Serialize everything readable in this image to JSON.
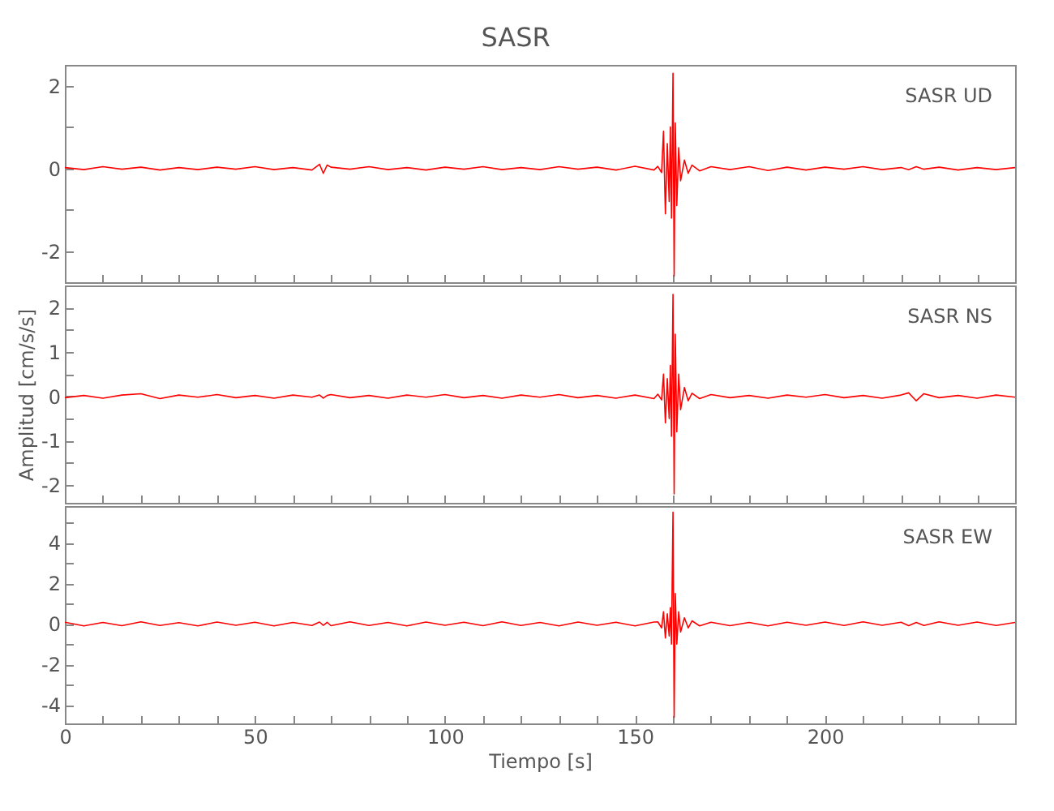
{
  "chart_data": [
    {
      "type": "line",
      "title": "SASR",
      "annotations": [
        "SASR   UD"
      ],
      "tick_labels": "y",
      "xlim": [
        0,
        250
      ],
      "ylim": [
        -2.75,
        2.5
      ],
      "xticks": [
        0,
        {
          "value": 10,
          "label": null
        },
        {
          "value": 20,
          "label": null
        },
        {
          "value": 30,
          "label": null
        },
        {
          "value": 40,
          "label": null
        },
        50,
        {
          "value": 60,
          "label": null
        },
        {
          "value": 70,
          "label": null
        },
        {
          "value": 80,
          "label": null
        },
        {
          "value": 90,
          "label": null
        },
        100,
        {
          "value": 110,
          "label": null
        },
        {
          "value": 120,
          "label": null
        },
        {
          "value": 130,
          "label": null
        },
        {
          "value": 140,
          "label": null
        },
        150,
        {
          "value": 160,
          "label": null
        },
        {
          "value": 170,
          "label": null
        },
        {
          "value": 180,
          "label": null
        },
        {
          "value": 190,
          "label": null
        },
        200,
        {
          "value": 210,
          "label": null
        },
        {
          "value": 220,
          "label": null
        },
        {
          "value": 230,
          "label": null
        },
        {
          "value": 240,
          "label": null
        }
      ],
      "yticks": [
        -2,
        {
          "value": -1,
          "label": null
        },
        0,
        {
          "value": 1,
          "label": null
        },
        2
      ],
      "x": [
        0,
        5,
        10,
        15,
        20,
        25,
        30,
        35,
        40,
        45,
        50,
        55,
        60,
        65,
        67,
        68,
        69,
        70,
        75,
        80,
        85,
        90,
        95,
        100,
        105,
        110,
        115,
        120,
        125,
        130,
        135,
        140,
        145,
        150,
        155,
        156,
        157,
        157.5,
        158,
        158.5,
        159,
        159.3,
        159.6,
        160,
        160.3,
        160.6,
        161,
        161.5,
        162,
        163,
        164,
        165,
        167,
        170,
        175,
        180,
        185,
        190,
        195,
        200,
        205,
        210,
        215,
        220,
        222,
        224,
        226,
        230,
        235,
        240,
        245,
        250
      ],
      "series": [
        {
          "color": "#ff0000",
          "values": [
            0.02,
            -0.03,
            0.04,
            -0.02,
            0.03,
            -0.04,
            0.02,
            -0.03,
            0.03,
            -0.02,
            0.04,
            -0.03,
            0.02,
            -0.04,
            0.1,
            -0.12,
            0.08,
            0.03,
            -0.02,
            0.04,
            -0.03,
            0.02,
            -0.04,
            0.03,
            -0.02,
            0.04,
            -0.03,
            0.02,
            -0.03,
            0.04,
            -0.02,
            0.03,
            -0.04,
            0.05,
            -0.04,
            0.05,
            -0.1,
            0.9,
            -1.1,
            0.6,
            -0.8,
            1.0,
            -1.2,
            2.3,
            -2.6,
            1.1,
            -0.9,
            0.5,
            -0.3,
            0.2,
            -0.12,
            0.08,
            -0.06,
            0.04,
            -0.03,
            0.04,
            -0.05,
            0.03,
            -0.04,
            0.03,
            -0.02,
            0.04,
            -0.03,
            0.02,
            -0.03,
            0.04,
            -0.02,
            0.03,
            -0.04,
            0.02,
            -0.03,
            0.02
          ]
        }
      ]
    },
    {
      "type": "line",
      "ylabel": "Amplitud  [cm/s/s]",
      "annotations": [
        "SASR   NS"
      ],
      "tick_labels": "y",
      "xlim": [
        0,
        250
      ],
      "ylim": [
        -2.4,
        2.5
      ],
      "xticks": [
        0,
        {
          "value": 10,
          "label": null
        },
        {
          "value": 20,
          "label": null
        },
        {
          "value": 30,
          "label": null
        },
        {
          "value": 40,
          "label": null
        },
        50,
        {
          "value": 60,
          "label": null
        },
        {
          "value": 70,
          "label": null
        },
        {
          "value": 80,
          "label": null
        },
        {
          "value": 90,
          "label": null
        },
        100,
        {
          "value": 110,
          "label": null
        },
        {
          "value": 120,
          "label": null
        },
        {
          "value": 130,
          "label": null
        },
        {
          "value": 140,
          "label": null
        },
        150,
        {
          "value": 160,
          "label": null
        },
        {
          "value": 170,
          "label": null
        },
        {
          "value": 180,
          "label": null
        },
        {
          "value": 190,
          "label": null
        },
        200,
        {
          "value": 210,
          "label": null
        },
        {
          "value": 220,
          "label": null
        },
        {
          "value": 230,
          "label": null
        },
        {
          "value": 240,
          "label": null
        }
      ],
      "yticks": [
        -2,
        {
          "value": -1.5,
          "label": null
        },
        -1,
        {
          "value": -0.5,
          "label": null
        },
        0,
        {
          "value": 0.5,
          "label": null
        },
        1,
        {
          "value": 1.5,
          "label": null
        },
        2
      ],
      "x": [
        0,
        5,
        10,
        15,
        20,
        25,
        30,
        35,
        40,
        45,
        50,
        55,
        60,
        65,
        67,
        68,
        69,
        70,
        75,
        80,
        85,
        90,
        95,
        100,
        105,
        110,
        115,
        120,
        125,
        130,
        135,
        140,
        145,
        150,
        155,
        156,
        157,
        157.5,
        158,
        158.5,
        159,
        159.3,
        159.6,
        160,
        160.3,
        160.6,
        161,
        161.5,
        162,
        163,
        164,
        165,
        167,
        170,
        175,
        180,
        185,
        190,
        195,
        200,
        205,
        210,
        215,
        220,
        222,
        224,
        226,
        230,
        235,
        240,
        245,
        250
      ],
      "series": [
        {
          "color": "#ff0000",
          "values": [
            -0.03,
            0.02,
            -0.04,
            0.03,
            0.06,
            -0.05,
            0.03,
            -0.02,
            0.04,
            -0.03,
            0.02,
            -0.04,
            0.03,
            -0.02,
            0.03,
            -0.04,
            0.02,
            0.04,
            -0.03,
            0.02,
            -0.04,
            0.03,
            -0.02,
            0.04,
            -0.03,
            0.02,
            -0.04,
            0.03,
            -0.02,
            0.04,
            -0.03,
            0.02,
            -0.04,
            0.03,
            -0.05,
            0.05,
            -0.08,
            0.5,
            -0.6,
            0.4,
            -0.5,
            0.7,
            -0.9,
            2.3,
            -2.2,
            1.4,
            -0.8,
            0.5,
            -0.3,
            0.2,
            -0.1,
            0.07,
            -0.05,
            0.04,
            -0.03,
            0.02,
            -0.04,
            0.03,
            -0.02,
            0.04,
            -0.03,
            0.02,
            -0.04,
            0.03,
            0.08,
            -0.1,
            0.06,
            -0.03,
            0.02,
            -0.04,
            0.03,
            -0.02
          ]
        }
      ]
    },
    {
      "type": "line",
      "xlabel": "Tiempo  [s]",
      "annotations": [
        "SASR   EW"
      ],
      "xlim": [
        0,
        250
      ],
      "ylim": [
        -4.9,
        5.8
      ],
      "xticks": [
        0,
        {
          "value": 10,
          "label": null
        },
        {
          "value": 20,
          "label": null
        },
        {
          "value": 30,
          "label": null
        },
        {
          "value": 40,
          "label": null
        },
        50,
        {
          "value": 60,
          "label": null
        },
        {
          "value": 70,
          "label": null
        },
        {
          "value": 80,
          "label": null
        },
        {
          "value": 90,
          "label": null
        },
        100,
        {
          "value": 110,
          "label": null
        },
        {
          "value": 120,
          "label": null
        },
        {
          "value": 130,
          "label": null
        },
        {
          "value": 140,
          "label": null
        },
        150,
        {
          "value": 160,
          "label": null
        },
        {
          "value": 170,
          "label": null
        },
        {
          "value": 180,
          "label": null
        },
        {
          "value": 190,
          "label": null
        },
        200,
        {
          "value": 210,
          "label": null
        },
        {
          "value": 220,
          "label": null
        },
        {
          "value": 230,
          "label": null
        },
        {
          "value": 240,
          "label": null
        }
      ],
      "yticks": [
        -4,
        {
          "value": -3,
          "label": null
        },
        -2,
        {
          "value": -1,
          "label": null
        },
        0,
        {
          "value": 1,
          "label": null
        },
        2,
        {
          "value": 3,
          "label": null
        },
        4,
        {
          "value": 5,
          "label": null
        }
      ],
      "x": [
        0,
        5,
        10,
        15,
        20,
        25,
        30,
        35,
        40,
        45,
        50,
        55,
        60,
        65,
        67,
        68,
        69,
        70,
        75,
        80,
        85,
        90,
        95,
        100,
        105,
        110,
        115,
        120,
        125,
        130,
        135,
        140,
        145,
        150,
        155,
        156,
        157,
        157.5,
        158,
        158.5,
        159,
        159.3,
        159.6,
        160,
        160.3,
        160.6,
        161,
        161.5,
        162,
        163,
        164,
        165,
        167,
        170,
        175,
        180,
        185,
        190,
        195,
        200,
        205,
        210,
        215,
        220,
        222,
        224,
        226,
        230,
        235,
        240,
        245,
        250
      ],
      "series": [
        {
          "color": "#ff0000",
          "values": [
            0.08,
            -0.1,
            0.07,
            -0.09,
            0.1,
            -0.08,
            0.06,
            -0.1,
            0.09,
            -0.07,
            0.08,
            -0.1,
            0.07,
            -0.08,
            0.09,
            -0.07,
            0.08,
            -0.09,
            0.1,
            -0.08,
            0.07,
            -0.1,
            0.09,
            -0.07,
            0.08,
            -0.09,
            0.1,
            -0.08,
            0.07,
            -0.1,
            0.09,
            -0.07,
            0.08,
            -0.1,
            0.09,
            0.1,
            -0.2,
            0.6,
            -0.7,
            0.5,
            -0.6,
            0.8,
            -1.0,
            5.5,
            -4.6,
            1.5,
            -1.0,
            0.6,
            -0.4,
            0.3,
            -0.2,
            0.15,
            -0.1,
            0.08,
            -0.09,
            0.07,
            -0.1,
            0.08,
            -0.07,
            0.09,
            -0.08,
            0.1,
            -0.07,
            0.08,
            -0.09,
            0.07,
            -0.08,
            0.1,
            -0.07,
            0.09,
            -0.08,
            0.07
          ]
        }
      ]
    }
  ]
}
